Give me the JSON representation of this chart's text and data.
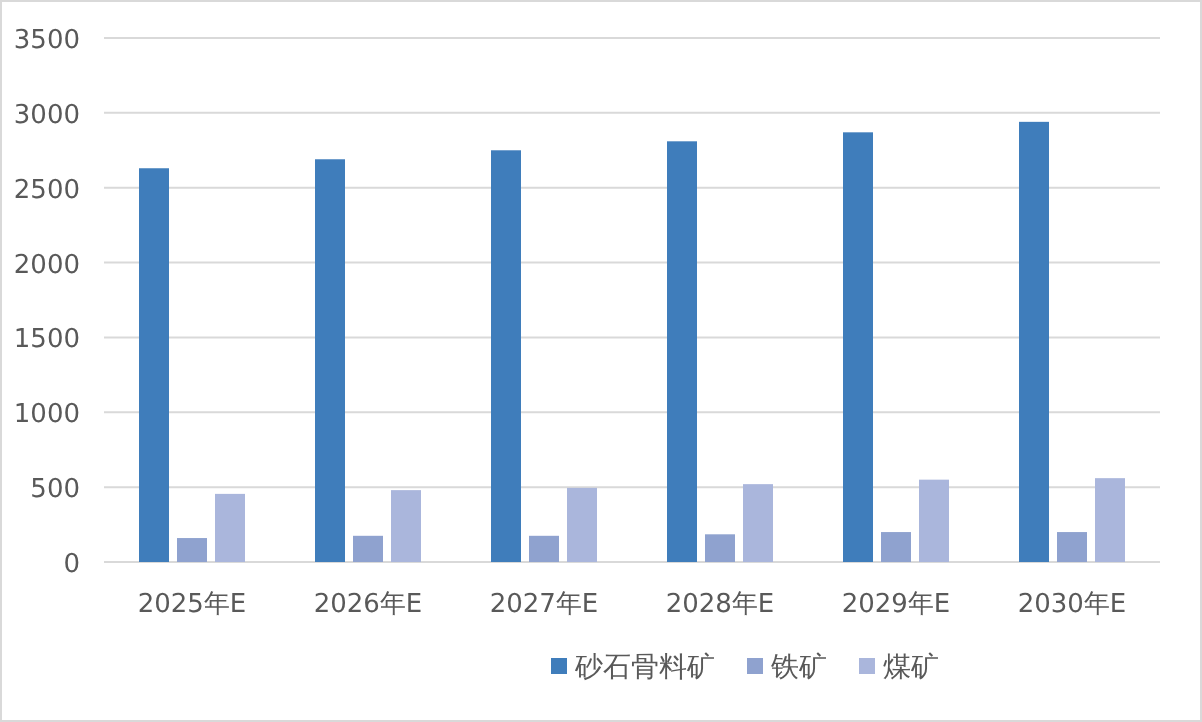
{
  "chart_data": {
    "type": "bar",
    "categories": [
      "2025年E",
      "2026年E",
      "2027年E",
      "2028年E",
      "2029年E",
      "2030年E"
    ],
    "series": [
      {
        "name": "砂石骨料矿",
        "color": "#3f7dbb",
        "values": [
          2630,
          2690,
          2750,
          2810,
          2870,
          2940
        ]
      },
      {
        "name": "铁矿",
        "color": "#8fa2cf",
        "values": [
          160,
          175,
          175,
          185,
          200,
          200
        ]
      },
      {
        "name": "煤矿",
        "color": "#aab6dc",
        "values": [
          455,
          480,
          495,
          520,
          550,
          560
        ]
      }
    ],
    "ylim": [
      0,
      3500
    ],
    "yticks": [
      0,
      500,
      1000,
      1500,
      2000,
      2500,
      3000,
      3500
    ],
    "grid": "y",
    "legend": "bottom"
  }
}
